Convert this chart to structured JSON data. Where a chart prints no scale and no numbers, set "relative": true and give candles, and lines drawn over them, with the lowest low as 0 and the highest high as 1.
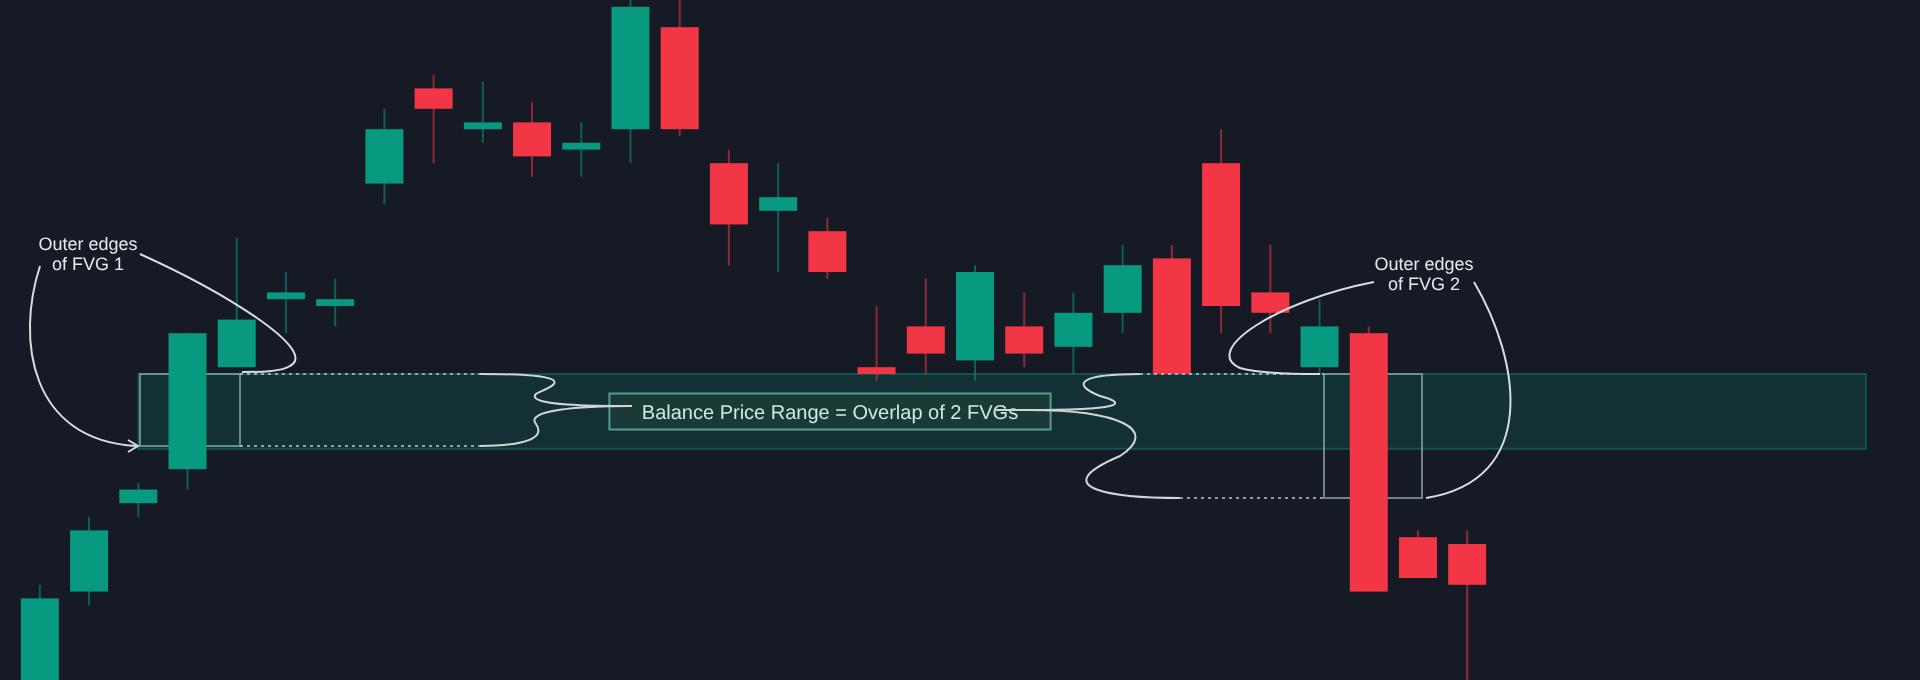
{
  "chart_data": {
    "type": "candlestick",
    "relative": true,
    "categories": [
      null,
      null,
      null,
      null,
      null,
      null,
      null,
      null,
      null,
      null,
      null,
      null,
      null,
      null,
      null,
      null,
      null,
      null,
      null,
      null,
      null,
      null,
      null,
      null,
      null,
      null,
      null,
      null,
      null,
      null
    ],
    "ohlc": [
      [
        0,
        0.14,
        0,
        0.12
      ],
      [
        0.13,
        0.24,
        0.11,
        0.22
      ],
      [
        0.26,
        0.29,
        0.24,
        0.28
      ],
      [
        0.31,
        0.51,
        0.28,
        0.51
      ],
      [
        0.46,
        0.65,
        0.46,
        0.53
      ],
      [
        0.56,
        0.6,
        0.51,
        0.57
      ],
      [
        0.55,
        0.59,
        0.52,
        0.56
      ],
      [
        0.73,
        0.84,
        0.7,
        0.81
      ],
      [
        0.87,
        0.89,
        0.76,
        0.84
      ],
      [
        0.81,
        0.88,
        0.79,
        0.82
      ],
      [
        0.82,
        0.85,
        0.74,
        0.77
      ],
      [
        0.78,
        0.82,
        0.74,
        0.79
      ],
      [
        0.81,
        1,
        0.76,
        0.99
      ],
      [
        0.96,
        1,
        0.8,
        0.81
      ],
      [
        0.76,
        0.78,
        0.61,
        0.67
      ],
      [
        0.69,
        0.76,
        0.6,
        0.71
      ],
      [
        0.66,
        0.68,
        0.59,
        0.6
      ],
      [
        0.46,
        0.55,
        0.44,
        0.45
      ],
      [
        0.52,
        0.59,
        0.45,
        0.48
      ],
      [
        0.47,
        0.61,
        0.44,
        0.6
      ],
      [
        0.52,
        0.57,
        0.46,
        0.48
      ],
      [
        0.49,
        0.57,
        0.45,
        0.54
      ],
      [
        0.54,
        0.64,
        0.51,
        0.61
      ],
      [
        0.62,
        0.64,
        0.45,
        0.45
      ],
      [
        0.76,
        0.81,
        0.51,
        0.55
      ],
      [
        0.57,
        0.64,
        0.51,
        0.54
      ],
      [
        0.46,
        0.56,
        0.45,
        0.52
      ],
      [
        0.51,
        0.52,
        0.13,
        0.13
      ],
      [
        0.21,
        0.22,
        0.15,
        0.15
      ],
      [
        0.2,
        0.22,
        0,
        0.14
      ]
    ],
    "bands": [
      {
        "axis": "y",
        "from": 0.34,
        "to": 0.45,
        "label": "Balance Price Range = Overlap of 2 FVGs",
        "color": "#089981"
      }
    ],
    "annotations": [
      "Outer edges\nof FVG 1",
      "Outer edges\nof FVG 2"
    ]
  }
}
